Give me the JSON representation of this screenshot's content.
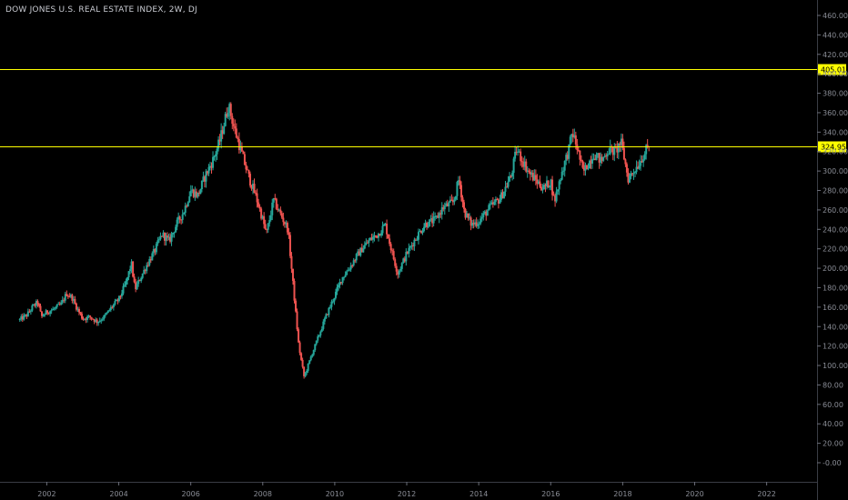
{
  "chart_data": {
    "type": "candlestick",
    "title": "DOW JONES U.S. REAL ESTATE INDEX, 2W, DJ",
    "x_ticks": [
      "2002",
      "2004",
      "2006",
      "2008",
      "2010",
      "2012",
      "2014",
      "2016",
      "2018",
      "2020",
      "2022"
    ],
    "x_range": [
      2000.7,
      2023.4
    ],
    "y_ticks": [
      "-0.00",
      "20.00",
      "40.00",
      "60.00",
      "80.00",
      "100.00",
      "120.00",
      "140.00",
      "160.00",
      "180.00",
      "200.00",
      "220.00",
      "240.00",
      "260.00",
      "280.00",
      "300.00",
      "320.00",
      "340.00",
      "360.00",
      "380.00",
      "400.00",
      "420.00",
      "440.00",
      "460.00"
    ],
    "y_range": [
      -4,
      472
    ],
    "grid": false,
    "up_color": "#26a69a",
    "down_color": "#ef5350",
    "price_path": [
      [
        2001.25,
        147
      ],
      [
        2001.45,
        152
      ],
      [
        2001.6,
        160
      ],
      [
        2001.75,
        165
      ],
      [
        2001.85,
        150
      ],
      [
        2002.0,
        155
      ],
      [
        2002.2,
        158
      ],
      [
        2002.4,
        163
      ],
      [
        2002.55,
        174
      ],
      [
        2002.7,
        170
      ],
      [
        2002.85,
        158
      ],
      [
        2003.0,
        148
      ],
      [
        2003.2,
        150
      ],
      [
        2003.4,
        145
      ],
      [
        2003.6,
        150
      ],
      [
        2003.8,
        160
      ],
      [
        2004.0,
        168
      ],
      [
        2004.2,
        185
      ],
      [
        2004.35,
        205
      ],
      [
        2004.45,
        178
      ],
      [
        2004.6,
        190
      ],
      [
        2004.8,
        205
      ],
      [
        2005.0,
        218
      ],
      [
        2005.2,
        235
      ],
      [
        2005.4,
        228
      ],
      [
        2005.6,
        245
      ],
      [
        2005.8,
        258
      ],
      [
        2006.0,
        280
      ],
      [
        2006.2,
        275
      ],
      [
        2006.4,
        295
      ],
      [
        2006.6,
        310
      ],
      [
        2006.8,
        330
      ],
      [
        2007.05,
        368
      ],
      [
        2007.2,
        345
      ],
      [
        2007.4,
        320
      ],
      [
        2007.6,
        295
      ],
      [
        2007.8,
        275
      ],
      [
        2008.0,
        250
      ],
      [
        2008.1,
        235
      ],
      [
        2008.3,
        270
      ],
      [
        2008.5,
        255
      ],
      [
        2008.7,
        240
      ],
      [
        2008.85,
        180
      ],
      [
        2009.0,
        120
      ],
      [
        2009.15,
        88
      ],
      [
        2009.35,
        110
      ],
      [
        2009.55,
        130
      ],
      [
        2009.75,
        150
      ],
      [
        2010.0,
        172
      ],
      [
        2010.2,
        190
      ],
      [
        2010.4,
        200
      ],
      [
        2010.6,
        212
      ],
      [
        2010.8,
        222
      ],
      [
        2011.0,
        230
      ],
      [
        2011.2,
        235
      ],
      [
        2011.4,
        245
      ],
      [
        2011.6,
        215
      ],
      [
        2011.75,
        195
      ],
      [
        2012.0,
        215
      ],
      [
        2012.2,
        228
      ],
      [
        2012.5,
        245
      ],
      [
        2012.8,
        250
      ],
      [
        2013.0,
        262
      ],
      [
        2013.3,
        268
      ],
      [
        2013.45,
        292
      ],
      [
        2013.6,
        258
      ],
      [
        2013.8,
        245
      ],
      [
        2014.0,
        248
      ],
      [
        2014.3,
        262
      ],
      [
        2014.6,
        272
      ],
      [
        2014.9,
        295
      ],
      [
        2015.05,
        322
      ],
      [
        2015.2,
        312
      ],
      [
        2015.4,
        298
      ],
      [
        2015.6,
        290
      ],
      [
        2015.8,
        282
      ],
      [
        2016.0,
        290
      ],
      [
        2016.1,
        268
      ],
      [
        2016.3,
        298
      ],
      [
        2016.5,
        322
      ],
      [
        2016.6,
        340
      ],
      [
        2016.75,
        322
      ],
      [
        2016.9,
        298
      ],
      [
        2017.0,
        305
      ],
      [
        2017.2,
        318
      ],
      [
        2017.4,
        310
      ],
      [
        2017.6,
        322
      ],
      [
        2017.8,
        320
      ],
      [
        2017.95,
        330
      ],
      [
        2018.05,
        312
      ],
      [
        2018.15,
        292
      ],
      [
        2018.3,
        300
      ],
      [
        2018.45,
        308
      ],
      [
        2018.6,
        318
      ],
      [
        2018.75,
        327
      ]
    ],
    "horizontal_levels": [
      {
        "value": 405.01,
        "label": "405.01",
        "color": "#ffff00"
      },
      {
        "value": 324.95,
        "label": "324.95",
        "color": "#ffff00"
      }
    ]
  }
}
